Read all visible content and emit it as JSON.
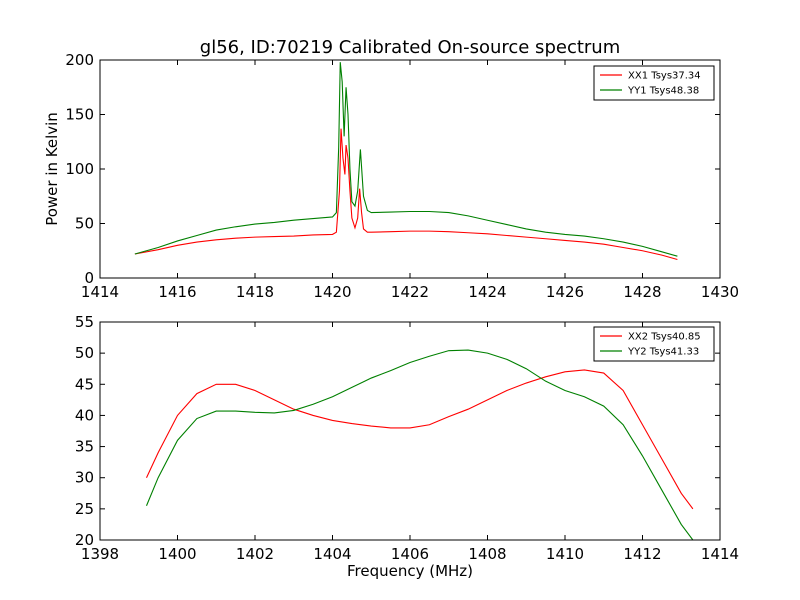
{
  "figure_title": "gl56, ID:70219 Calibrated On-source spectrum",
  "chart_data": [
    {
      "type": "line",
      "title": "gl56, ID:70219 Calibrated On-source spectrum",
      "xlabel": "",
      "ylabel": "Power in Kelvin",
      "xlim": [
        1414,
        1430
      ],
      "ylim": [
        0,
        200
      ],
      "xticks": [
        1414,
        1416,
        1418,
        1420,
        1422,
        1424,
        1426,
        1428,
        1430
      ],
      "yticks": [
        0,
        50,
        100,
        150,
        200
      ],
      "legend_position": "top-right",
      "grid": false,
      "series": [
        {
          "name": "XX1 Tsys37.34",
          "color": "#ff0000",
          "x": [
            1414.9,
            1415.5,
            1416,
            1416.5,
            1417,
            1417.5,
            1418,
            1418.5,
            1419,
            1419.5,
            1420,
            1420.1,
            1420.18,
            1420.22,
            1420.27,
            1420.32,
            1420.35,
            1420.4,
            1420.45,
            1420.5,
            1420.58,
            1420.65,
            1420.7,
            1420.75,
            1420.8,
            1420.9,
            1421,
            1421.5,
            1422,
            1422.5,
            1423,
            1423.5,
            1424,
            1424.5,
            1425,
            1425.5,
            1426,
            1426.5,
            1427,
            1427.5,
            1428,
            1428.5,
            1428.9
          ],
          "values": [
            22,
            26,
            30,
            33,
            35,
            36.5,
            37.5,
            38,
            38.5,
            39.5,
            40,
            42,
            80,
            137,
            110,
            95,
            122,
            110,
            80,
            55,
            46,
            55,
            82,
            60,
            45,
            42,
            42,
            42.5,
            43,
            43,
            42.5,
            41.5,
            40.5,
            39,
            37.5,
            36,
            34.5,
            33,
            31,
            28,
            25,
            21,
            17
          ]
        },
        {
          "name": "YY1 Tsys48.38",
          "color": "#008000",
          "x": [
            1414.9,
            1415.5,
            1416,
            1416.5,
            1417,
            1417.5,
            1418,
            1418.5,
            1419,
            1419.5,
            1420,
            1420.1,
            1420.16,
            1420.2,
            1420.25,
            1420.3,
            1420.35,
            1420.4,
            1420.45,
            1420.5,
            1420.58,
            1420.65,
            1420.72,
            1420.8,
            1420.9,
            1421,
            1421.5,
            1422,
            1422.5,
            1423,
            1423.5,
            1424,
            1424.5,
            1425,
            1425.5,
            1426,
            1426.5,
            1427,
            1427.5,
            1428,
            1428.5,
            1428.9
          ],
          "values": [
            22,
            28,
            34,
            39,
            44,
            47,
            49.5,
            51,
            53,
            54.5,
            56,
            60,
            120,
            198,
            180,
            130,
            175,
            150,
            100,
            70,
            66,
            80,
            118,
            75,
            62,
            60,
            60.5,
            61,
            61,
            60,
            57,
            53,
            49,
            45,
            42,
            40,
            38.5,
            36,
            33,
            29,
            24,
            20
          ]
        }
      ]
    },
    {
      "type": "line",
      "title": "",
      "xlabel": "Frequency (MHz)",
      "ylabel": "",
      "xlim": [
        1398,
        1414
      ],
      "ylim": [
        20,
        55
      ],
      "xticks": [
        1398,
        1400,
        1402,
        1404,
        1406,
        1408,
        1410,
        1412,
        1414
      ],
      "yticks": [
        20,
        25,
        30,
        35,
        40,
        45,
        50,
        55
      ],
      "legend_position": "top-right",
      "grid": false,
      "series": [
        {
          "name": "XX2 Tsys40.85",
          "color": "#ff0000",
          "x": [
            1399.2,
            1399.5,
            1400,
            1400.5,
            1401,
            1401.5,
            1402,
            1402.5,
            1403,
            1403.5,
            1404,
            1404.5,
            1405,
            1405.5,
            1406,
            1406.5,
            1407,
            1407.5,
            1408,
            1408.5,
            1409,
            1409.5,
            1410,
            1410.5,
            1411,
            1411.5,
            1412,
            1412.5,
            1413,
            1413.3
          ],
          "values": [
            30,
            34,
            40,
            43.5,
            45,
            45,
            44,
            42.5,
            41,
            40,
            39.2,
            38.7,
            38.3,
            38,
            38,
            38.5,
            39.8,
            41,
            42.5,
            44,
            45.2,
            46.2,
            47,
            47.3,
            46.8,
            44,
            38.5,
            33,
            27.5,
            25
          ]
        },
        {
          "name": "YY2 Tsys41.33",
          "color": "#008000",
          "x": [
            1399.2,
            1399.5,
            1400,
            1400.5,
            1401,
            1401.5,
            1402,
            1402.5,
            1403,
            1403.5,
            1404,
            1404.5,
            1405,
            1405.5,
            1406,
            1406.5,
            1407,
            1407.5,
            1408,
            1408.5,
            1409,
            1409.5,
            1410,
            1410.5,
            1411,
            1411.5,
            1412,
            1412.5,
            1413,
            1413.3
          ],
          "values": [
            25.5,
            30,
            36,
            39.5,
            40.7,
            40.7,
            40.5,
            40.4,
            40.8,
            41.8,
            43,
            44.5,
            46,
            47.2,
            48.5,
            49.5,
            50.4,
            50.5,
            50,
            49,
            47.5,
            45.5,
            44,
            43,
            41.5,
            38.5,
            33.5,
            28,
            22.5,
            20
          ]
        }
      ]
    }
  ]
}
